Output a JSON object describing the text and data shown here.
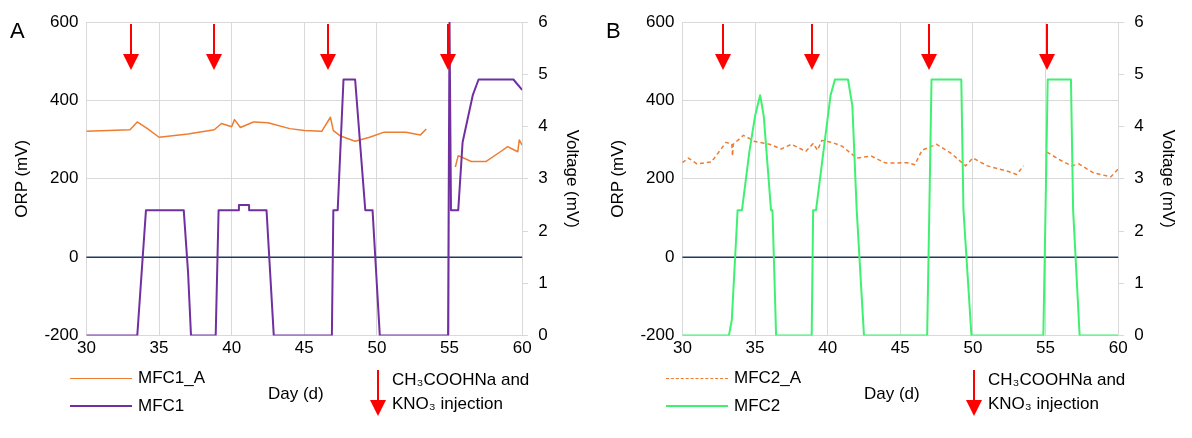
{
  "chart_data": [
    {
      "type": "line",
      "title": "A",
      "xlabel": "Day (d)",
      "ylabel": "ORP (mV)",
      "y2label": "Voltage (mV)",
      "xlim": [
        30,
        60
      ],
      "xticks": [
        30,
        35,
        40,
        45,
        50,
        55,
        60
      ],
      "ylim": [
        -200,
        600
      ],
      "yticks": [
        -200,
        0,
        200,
        400,
        600
      ],
      "y2lim": [
        0,
        6
      ],
      "y2ticks": [
        0,
        1,
        2,
        3,
        4,
        5,
        6
      ],
      "grid": true,
      "legend": "bottom",
      "marker": "none",
      "series": [
        {
          "name": "MFC1_A",
          "color": "#ed7d31",
          "x": [
            30,
            33,
            33.5,
            34.2,
            35,
            37,
            38.8,
            39.3,
            40,
            40.2,
            40.6,
            41.5,
            42.5,
            44,
            45,
            46.2,
            46.8,
            47,
            47.5,
            48.5,
            49.5,
            50.5,
            52,
            53,
            53.4,
            54.2,
            55,
            55.4,
            55.6,
            56.5,
            57.5,
            58.5,
            59,
            59.7,
            59.8,
            60
          ],
          "values": [
            321,
            325,
            345,
            328,
            306,
            314,
            325,
            341,
            333,
            351,
            331,
            345,
            343,
            328,
            323,
            321,
            357,
            323,
            309,
            296,
            306,
            319,
            319,
            312,
            327,
            null,
            null,
            230,
            259,
            244,
            244,
            269,
            282,
            269,
            299,
            286
          ]
        },
        {
          "name": "MFC1",
          "color": "#7030a0",
          "axis": "y2",
          "x": [
            30,
            33.5,
            33.8,
            34.1,
            36.7,
            37.0,
            37.2,
            38.9,
            39.1,
            40.5,
            40.5,
            41.2,
            41.2,
            42.4,
            42.9,
            46.9,
            47.0,
            47.3,
            47.7,
            48.5,
            49.2,
            49.7,
            50.2,
            54.9,
            55.0,
            55.1,
            55.6,
            55.9,
            56.6,
            57.0,
            59.4,
            60
          ],
          "values": [
            0,
            0,
            1.2,
            2.4,
            2.4,
            1.2,
            0,
            0,
            2.4,
            2.4,
            2.5,
            2.5,
            2.4,
            2.4,
            0,
            0,
            2.4,
            2.4,
            4.9,
            4.9,
            2.4,
            2.4,
            0,
            0,
            6,
            2.4,
            2.4,
            3.7,
            4.6,
            4.9,
            4.9,
            4.7
          ]
        }
      ],
      "ref_lines": [
        {
          "axis": "y",
          "value": 0,
          "color": "#1f3864"
        },
        {
          "axis": "x",
          "value": 33.1,
          "color": "#ff0000"
        },
        {
          "axis": "x",
          "value": 38.8,
          "color": "#ff0000"
        },
        {
          "axis": "x",
          "value": 46.6,
          "color": "#ff0000"
        },
        {
          "axis": "x",
          "value": 54.9,
          "color": "#ff0000"
        }
      ],
      "annotations": [
        "CH₃COOHNa and KNO₃ injection"
      ]
    },
    {
      "type": "line",
      "title": "B",
      "xlabel": "Day (d)",
      "ylabel": "ORP (mV)",
      "y2label": "Voltage (mV)",
      "xlim": [
        30,
        60
      ],
      "xticks": [
        30,
        35,
        40,
        45,
        50,
        55,
        60
      ],
      "ylim": [
        -200,
        600
      ],
      "yticks": [
        -200,
        0,
        200,
        400,
        600
      ],
      "y2lim": [
        0,
        6
      ],
      "y2ticks": [
        0,
        1,
        2,
        3,
        4,
        5,
        6
      ],
      "grid": true,
      "legend": "bottom",
      "marker": "none",
      "series": [
        {
          "name": "MFC2_A",
          "color": "#ed7d31",
          "line_style": "dashed",
          "x": [
            30,
            30.4,
            31,
            32,
            33,
            33.4,
            33.45,
            33.5,
            34.2,
            35,
            36,
            36.8,
            37.5,
            38.5,
            39,
            39.3,
            39.6,
            40.3,
            41,
            42,
            43,
            44,
            45.5,
            46,
            46.5,
            47.5,
            48.5,
            49.5,
            50,
            51,
            52.5,
            53,
            53.5,
            54.2,
            55.0,
            55.1,
            56,
            56.8,
            57.3,
            58.3,
            59.5,
            60
          ],
          "values": [
            241,
            253,
            238,
            243,
            293,
            288,
            258,
            288,
            311,
            295,
            288,
            276,
            288,
            270,
            290,
            273,
            298,
            293,
            283,
            253,
            258,
            240,
            241,
            236,
            273,
            288,
            265,
            233,
            253,
            233,
            218,
            211,
            233,
            null,
            null,
            268,
            248,
            233,
            238,
            215,
            205,
            225
          ]
        },
        {
          "name": "MFC2",
          "color": "#40f070",
          "axis": "y2",
          "x": [
            30,
            33.2,
            33.4,
            33.8,
            34.1,
            34.6,
            35.0,
            35.35,
            35.6,
            36.1,
            36.2,
            36.45,
            38.9,
            39.0,
            39.2,
            39.7,
            40.2,
            40.5,
            41.4,
            41.7,
            42.0,
            42.5,
            46.85,
            47.0,
            47.15,
            49.2,
            49.35,
            49.9,
            54.85,
            55.0,
            55.15,
            56.75,
            56.9,
            57.35,
            60
          ],
          "values": [
            0,
            0,
            0.3,
            2.4,
            2.4,
            3.5,
            4.2,
            4.6,
            4.2,
            2.4,
            2.4,
            0,
            0,
            2.4,
            2.4,
            3.5,
            4.6,
            4.9,
            4.9,
            4.4,
            2.4,
            0,
            0,
            2.4,
            4.9,
            4.9,
            2.4,
            0,
            0,
            2.4,
            4.9,
            4.9,
            2.4,
            0,
            0
          ]
        }
      ],
      "ref_lines": [
        {
          "axis": "y",
          "value": 0,
          "color": "#1f3864"
        },
        {
          "axis": "x",
          "value": 32.8,
          "color": "#ff0000"
        },
        {
          "axis": "x",
          "value": 38.9,
          "color": "#ff0000"
        },
        {
          "axis": "x",
          "value": 47.0,
          "color": "#ff0000"
        },
        {
          "axis": "x",
          "value": 55.1,
          "color": "#ff0000"
        }
      ],
      "annotations": [
        "CH₃COOHNa and KNO₃ injection"
      ]
    }
  ]
}
